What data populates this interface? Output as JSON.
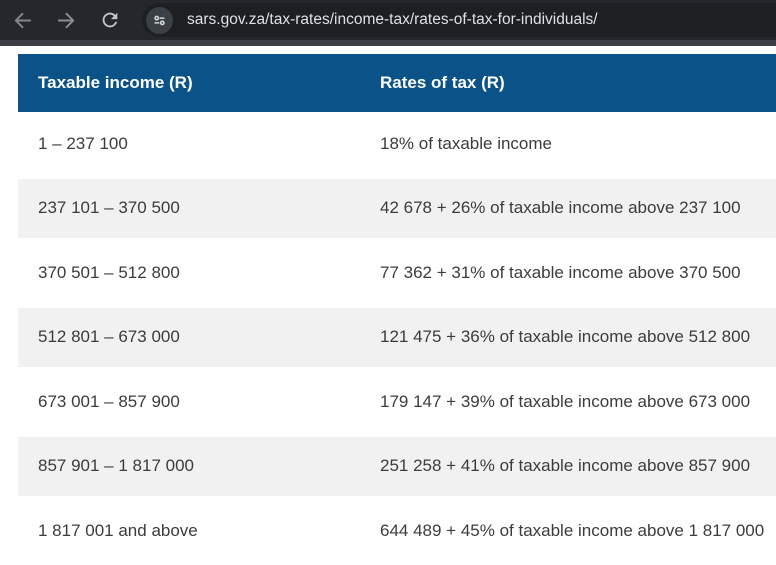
{
  "browser": {
    "url": "sars.gov.za/tax-rates/income-tax/rates-of-tax-for-individuals/",
    "icons": {
      "back": "back-arrow",
      "forward": "forward-arrow",
      "reload": "reload-circular-arrow",
      "site_settings": "site-settings-sliders"
    }
  },
  "table": {
    "columns": [
      "Taxable income (R)",
      "Rates of tax (R)"
    ],
    "rows": [
      {
        "income": "1 – 237 100",
        "rate": "18% of taxable income"
      },
      {
        "income": "237 101 – 370 500",
        "rate": "42 678 + 26% of taxable income above 237 100"
      },
      {
        "income": "370 501 – 512 800",
        "rate": "77 362 + 31% of taxable income above 370 500"
      },
      {
        "income": "512 801 – 673 000",
        "rate": "121 475 + 36% of taxable income above 512 800"
      },
      {
        "income": "673 001 – 857 900",
        "rate": "179 147 + 39% of taxable income above 673 000"
      },
      {
        "income": "857 901 – 1 817 000",
        "rate": "251 258 + 41% of taxable income above 857 900"
      },
      {
        "income": "1 817 001 and above",
        "rate": "644 489 + 45% of taxable income above 1 817 000"
      }
    ]
  },
  "colors": {
    "toolbar_bg": "#25272c",
    "omnibox_bg": "#1d1f23",
    "chip_bg": "#3b3f46",
    "strip": "#3a3d43",
    "header_bg": "#0b5289",
    "header_text": "#ffffff",
    "row_shaded_bg": "#f1f1f1",
    "cell_text": "#3c3c3c",
    "url_text": "#dde0e4"
  }
}
